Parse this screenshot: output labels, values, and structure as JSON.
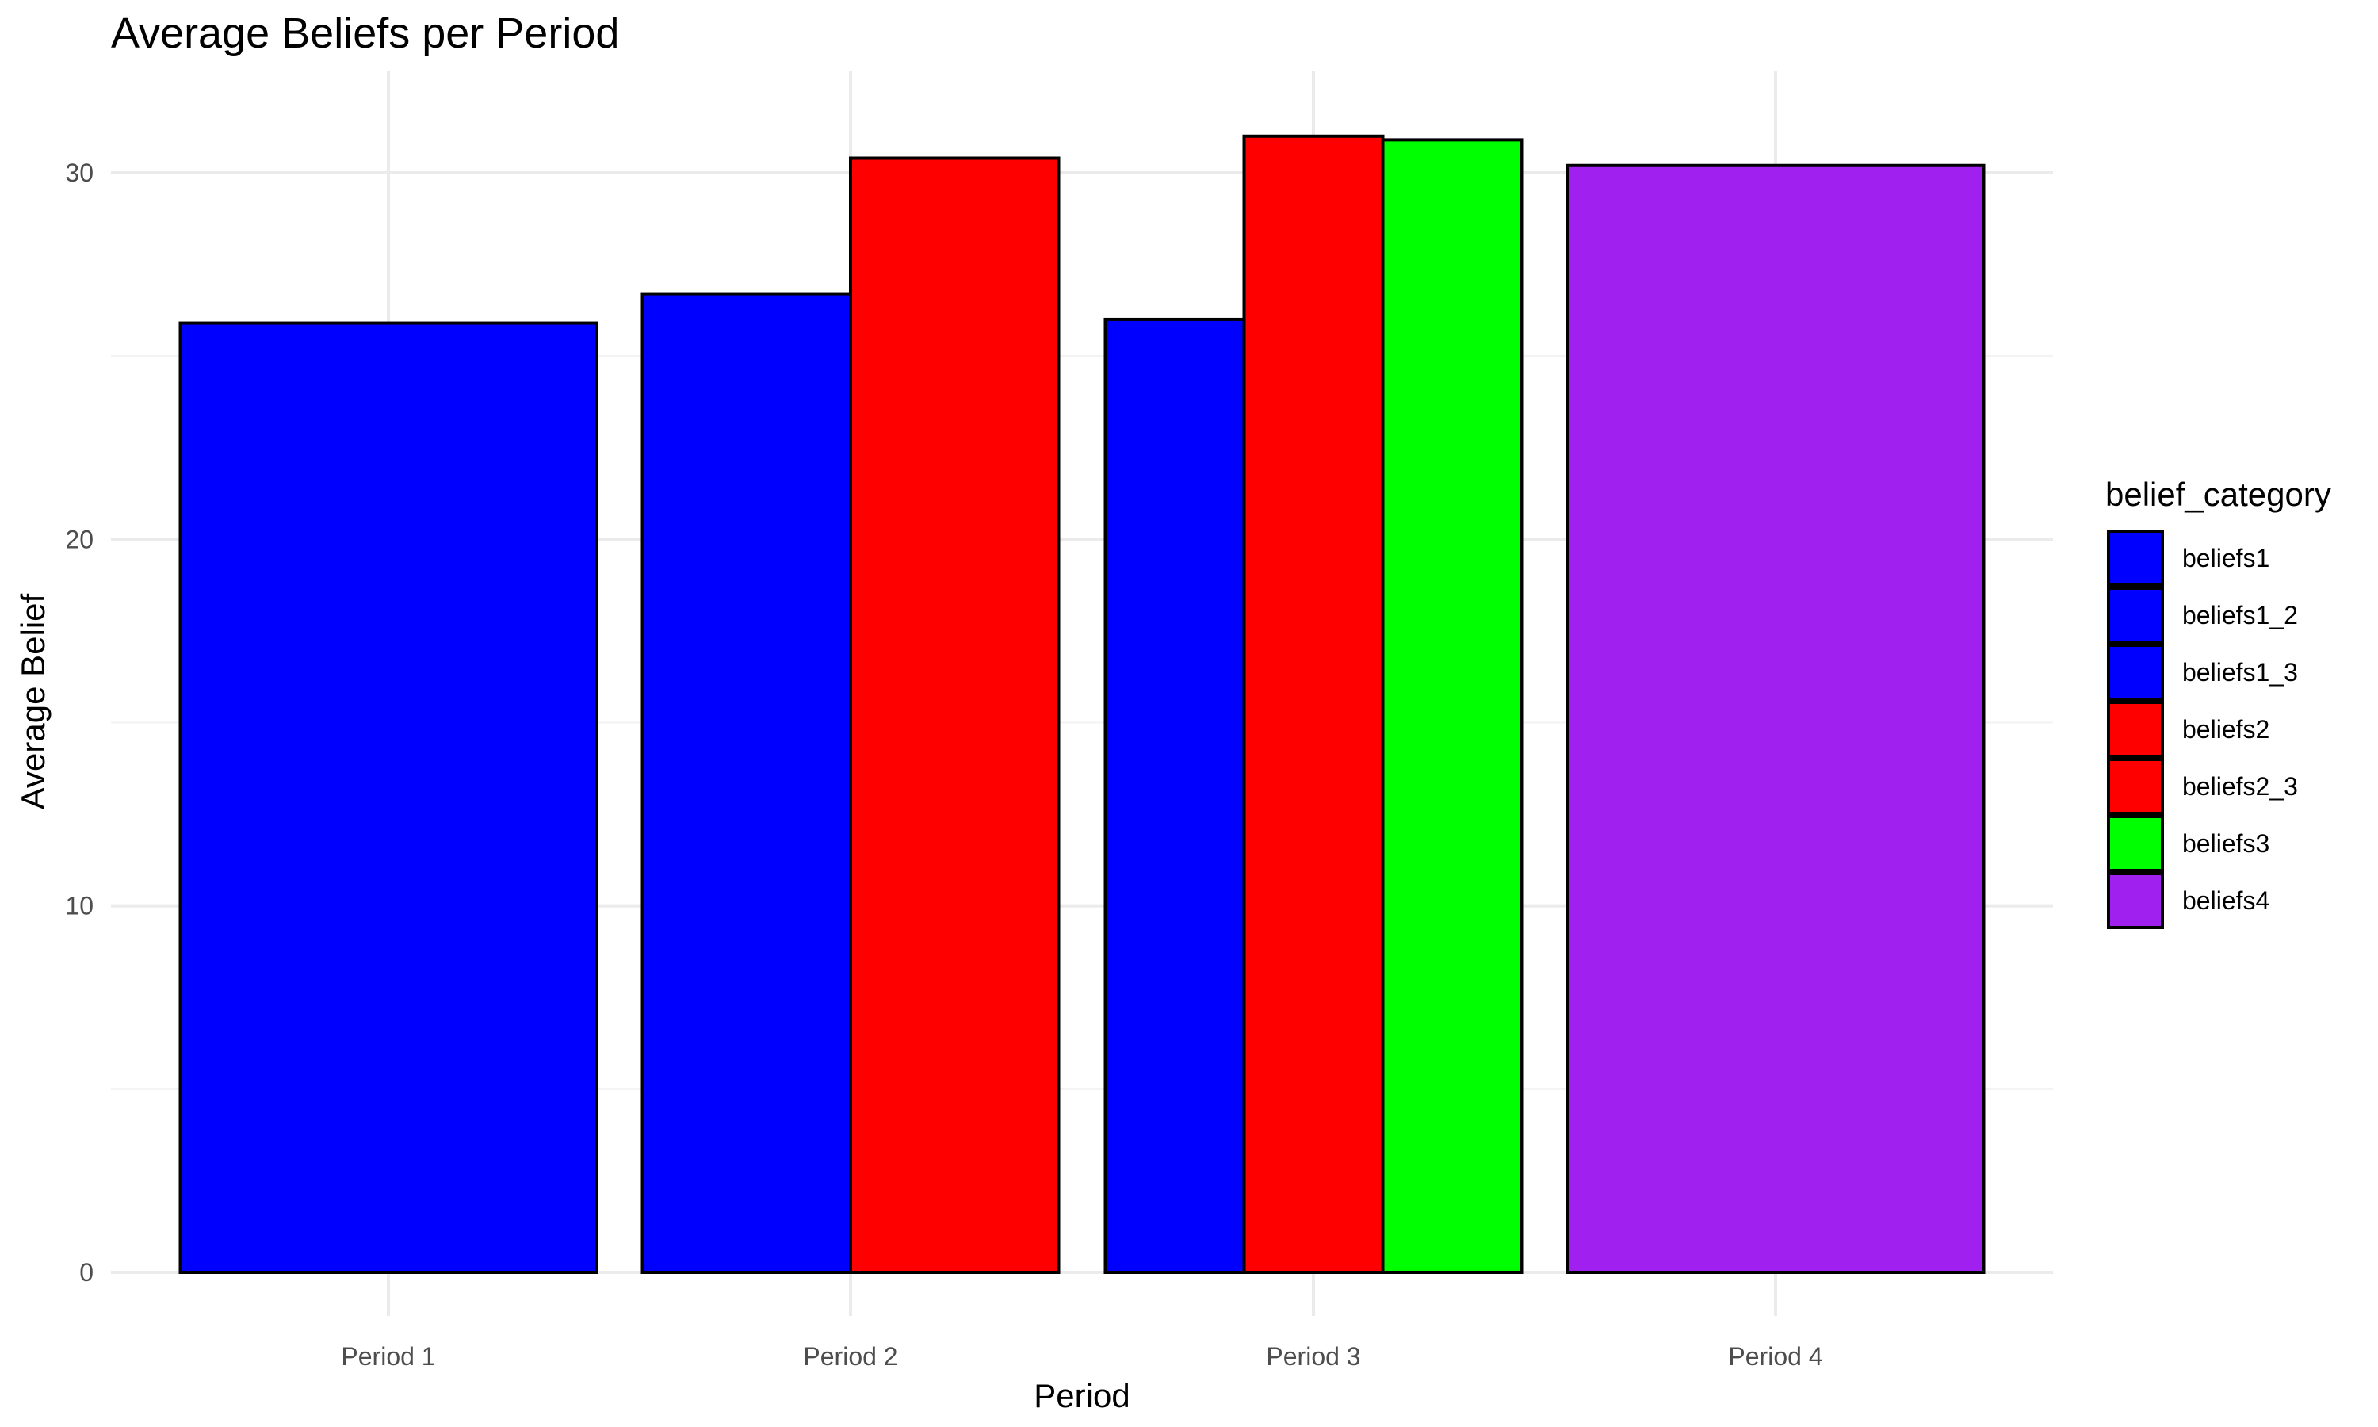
{
  "chart_data": {
    "type": "bar",
    "title": "Average Beliefs per Period",
    "xlabel": "Period",
    "ylabel": "Average Belief",
    "categories": [
      "Period 1",
      "Period 2",
      "Period 3",
      "Period 4"
    ],
    "ylim": [
      0,
      32.5
    ],
    "yticks": [
      0,
      10,
      20,
      30
    ],
    "grid": true,
    "legend": {
      "title": "belief_category",
      "placement": "right",
      "entries": [
        {
          "name": "beliefs1",
          "color": "#0000FF"
        },
        {
          "name": "beliefs1_2",
          "color": "#0000FF"
        },
        {
          "name": "beliefs1_3",
          "color": "#0000FF"
        },
        {
          "name": "beliefs2",
          "color": "#FF0000"
        },
        {
          "name": "beliefs2_3",
          "color": "#FF0000"
        },
        {
          "name": "beliefs3",
          "color": "#00FF00"
        },
        {
          "name": "beliefs4",
          "color": "#A020F0"
        }
      ]
    },
    "bars": [
      {
        "category": "Period 1",
        "series": "beliefs1",
        "value": 25.9
      },
      {
        "category": "Period 2",
        "series": "beliefs1_2",
        "value": 26.7
      },
      {
        "category": "Period 2",
        "series": "beliefs2",
        "value": 30.4
      },
      {
        "category": "Period 3",
        "series": "beliefs1_3",
        "value": 26.0
      },
      {
        "category": "Period 3",
        "series": "beliefs2_3",
        "value": 31.0
      },
      {
        "category": "Period 3",
        "series": "beliefs3",
        "value": 30.9
      },
      {
        "category": "Period 4",
        "series": "beliefs4",
        "value": 30.2
      }
    ]
  }
}
